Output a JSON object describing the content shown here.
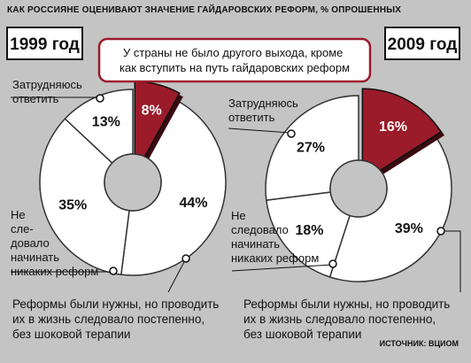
{
  "title": "КАК РОССИЯНЕ ОЦЕНИВАЮТ ЗНАЧЕНИЕ ГАЙДАРОВСКИХ РЕФОРМ, % ОПРОШЕННЫХ",
  "source": "ИСТОЧНИК: ВЦИОМ",
  "colors": {
    "accent": "#9b1b2a",
    "ring": "#ffffff",
    "background": "#c4c4c4"
  },
  "chart_data": [
    {
      "type": "pie",
      "year_label": "1999 год",
      "series": [
        {
          "name": "У страны не было другого выхода, кроме как вступить на путь гайдаровских реформ",
          "value": 8,
          "label": "8%"
        },
        {
          "name": "Реформы были нужны, но проводить их в жизнь следовало постепенно, без шоковой терапии",
          "value": 44,
          "label": "44%"
        },
        {
          "name": "Не следовало начинать никаких реформ",
          "value": 35,
          "label": "35%"
        },
        {
          "name": "Затрудняюсь ответить",
          "value": 13,
          "label": "13%"
        }
      ]
    },
    {
      "type": "pie",
      "year_label": "2009 год",
      "series": [
        {
          "name": "У страны не было другого выхода, кроме как вступить на путь гайдаровских реформ",
          "value": 16,
          "label": "16%"
        },
        {
          "name": "Реформы были нужны, но проводить их в жизнь следовало постепенно, без шоковой терапии",
          "value": 39,
          "label": "39%"
        },
        {
          "name": "Не следовало начинать никаких реформ",
          "value": 18,
          "label": "18%"
        },
        {
          "name": "Затрудняюсь ответить",
          "value": 27,
          "label": "27%"
        }
      ]
    }
  ],
  "labels": {
    "main_callout": [
      "У страны не было другого выхода, кроме",
      "как вступить на путь гайдаровских реформ"
    ],
    "left_unsure": [
      "Затрудняюсь",
      "ответить"
    ],
    "left_no": [
      "Не",
      "сле-",
      "довало",
      "начинать",
      "никаких реформ"
    ],
    "left_gradual": [
      "Реформы были нужны, но проводить",
      "их в жизнь следовало постепенно,",
      "без шоковой терапии"
    ],
    "right_unsure": [
      "Затрудняюсь",
      "ответить"
    ],
    "right_no": [
      "Не",
      "следовало",
      "начинать",
      "никаких реформ"
    ],
    "right_gradual": [
      "Реформы были нужны, но проводить",
      "их в жизнь следовало постепенно,",
      "без шоковой терапии"
    ]
  }
}
